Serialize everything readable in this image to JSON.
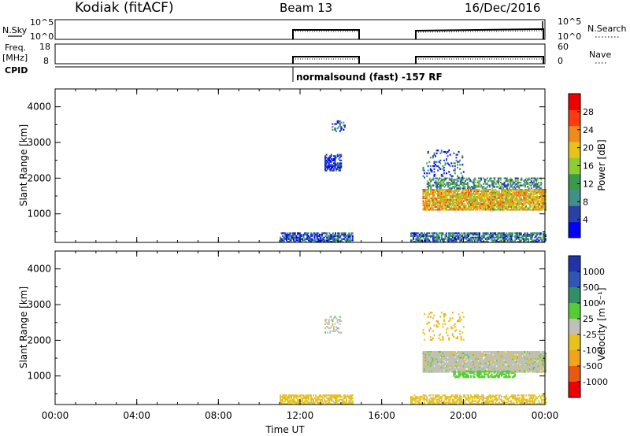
{
  "header": {
    "station": "Kodiak (fitACF)",
    "beam": "Beam 13",
    "date": "16/Dec/2016"
  },
  "noise_panel": {
    "left_label": "N.Sky",
    "left_ticks": [
      "10^5",
      "10^0"
    ],
    "right_label": "N.Search",
    "right_ticks": [
      "10^5",
      "10^0"
    ]
  },
  "freq_panel": {
    "left_label_1": "Freq.",
    "left_label_2": "[MHz]",
    "left_ticks": [
      "18",
      "8"
    ],
    "right_label": "Nave",
    "right_ticks": [
      "60",
      "0"
    ],
    "cpid_label": "CPID",
    "cpid_text": "normalsound (fast) -157 RF"
  },
  "colors": {
    "power_scale": [
      "#0000ff",
      "#2a3fa8",
      "#3f8f8a",
      "#3a9a4a",
      "#8fcc33",
      "#e6c21a",
      "#f08a1a",
      "#ff3a10",
      "#ee0000"
    ],
    "velocity_scale": [
      "#2233aa",
      "#2f55b5",
      "#2f8f66",
      "#55cc33",
      "#c0c0b8",
      "#e6c21a",
      "#f0a41a",
      "#e85a10",
      "#ee0000"
    ]
  },
  "chart_data": [
    {
      "type": "heatmap",
      "name": "power",
      "xlabel": "Time UT",
      "ylabel": "Slant Range [km]",
      "xlim": [
        0,
        24
      ],
      "ylim": [
        200,
        4500
      ],
      "x_ticks": [
        "00:00",
        "04:00",
        "08:00",
        "12:00",
        "16:00",
        "20:00",
        "00:00"
      ],
      "y_ticks": [
        1000,
        2000,
        3000,
        4000
      ],
      "colorbar": {
        "label": "Power [dB]",
        "range": [
          0,
          32
        ],
        "ticks": [
          4,
          8,
          12,
          16,
          20,
          24,
          28
        ]
      },
      "regions": [
        {
          "t": [
            11.0,
            14.6
          ],
          "r": [
            200,
            450
          ],
          "value": 6,
          "density": 0.7
        },
        {
          "t": [
            13.2,
            14.0
          ],
          "r": [
            2200,
            2650
          ],
          "value": 4,
          "density": 0.6
        },
        {
          "t": [
            13.5,
            14.2
          ],
          "r": [
            3300,
            3600
          ],
          "value": 6,
          "density": 0.3
        },
        {
          "t": [
            17.4,
            24.0
          ],
          "r": [
            200,
            450
          ],
          "value": 8,
          "density": 0.7
        },
        {
          "t": [
            18.0,
            24.0
          ],
          "r": [
            1100,
            1700
          ],
          "value": 20,
          "density": 0.85
        },
        {
          "t": [
            18.2,
            23.8
          ],
          "r": [
            1700,
            2000
          ],
          "value": 10,
          "density": 0.5
        },
        {
          "t": [
            18.0,
            20.0
          ],
          "r": [
            2000,
            2800
          ],
          "value": 6,
          "density": 0.15
        }
      ]
    },
    {
      "type": "heatmap",
      "name": "velocity",
      "xlabel": "Time UT",
      "ylabel": "Slant Range [km]",
      "xlim": [
        0,
        24
      ],
      "ylim": [
        200,
        4500
      ],
      "x_ticks": [
        "00:00",
        "04:00",
        "08:00",
        "12:00",
        "16:00",
        "20:00",
        "00:00"
      ],
      "y_ticks": [
        1000,
        2000,
        3000,
        4000
      ],
      "colorbar": {
        "label": "Velocity [m s⁻¹]",
        "ticks": [
          "1000",
          "500",
          "100",
          "25",
          "-25",
          "-100",
          "-500",
          "-1000"
        ]
      },
      "regions": [
        {
          "t": [
            11.0,
            14.6
          ],
          "r": [
            200,
            450
          ],
          "value": -50,
          "density": 0.7
        },
        {
          "t": [
            13.2,
            14.0
          ],
          "r": [
            2200,
            2650
          ],
          "value": 0,
          "density": 0.4
        },
        {
          "t": [
            17.4,
            24.0
          ],
          "r": [
            200,
            450
          ],
          "value": -50,
          "density": 0.6
        },
        {
          "t": [
            18.0,
            24.0
          ],
          "r": [
            1100,
            1700
          ],
          "value": 0,
          "density": 0.95
        },
        {
          "t": [
            19.5,
            22.5
          ],
          "r": [
            950,
            1150
          ],
          "value": 60,
          "density": 0.6
        },
        {
          "t": [
            18.0,
            20.0
          ],
          "r": [
            2000,
            2800
          ],
          "value": -80,
          "density": 0.12
        }
      ]
    }
  ]
}
